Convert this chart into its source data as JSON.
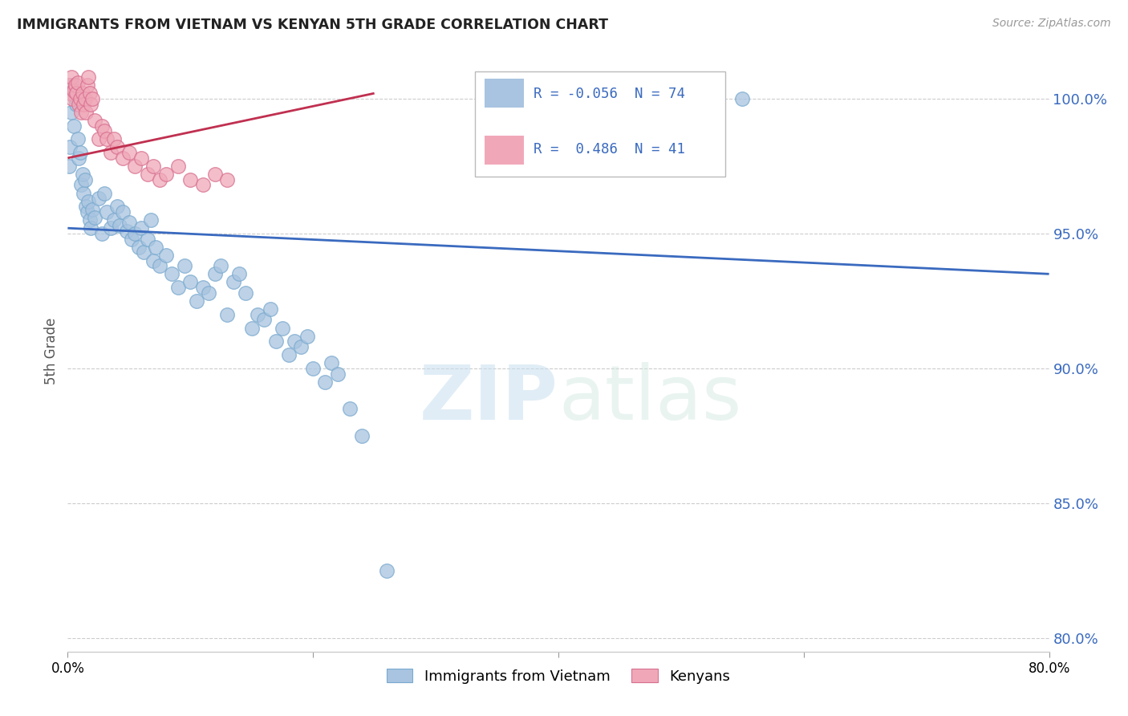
{
  "title": "IMMIGRANTS FROM VIETNAM VS KENYAN 5TH GRADE CORRELATION CHART",
  "source": "Source: ZipAtlas.com",
  "ylabel": "5th Grade",
  "yticks": [
    80.0,
    85.0,
    90.0,
    95.0,
    100.0
  ],
  "xlim": [
    0.0,
    0.8
  ],
  "ylim": [
    79.5,
    101.8
  ],
  "legend_blue_R": "-0.056",
  "legend_blue_N": "74",
  "legend_pink_R": "0.486",
  "legend_pink_N": "41",
  "blue_color": "#a8c4e0",
  "blue_edge_color": "#7aaacf",
  "pink_color": "#f0a8b8",
  "pink_edge_color": "#d87090",
  "blue_line_color": "#3a6abf",
  "pink_line_color": "#c03050",
  "legend_text_color": "#3a6abf",
  "watermark_color": "#daeaf8",
  "blue_scatter": [
    [
      0.001,
      97.5
    ],
    [
      0.002,
      98.2
    ],
    [
      0.003,
      99.5
    ],
    [
      0.004,
      100.5
    ],
    [
      0.005,
      99.0
    ],
    [
      0.006,
      100.0
    ],
    [
      0.007,
      99.8
    ],
    [
      0.008,
      98.5
    ],
    [
      0.009,
      97.8
    ],
    [
      0.01,
      98.0
    ],
    [
      0.011,
      96.8
    ],
    [
      0.012,
      97.2
    ],
    [
      0.013,
      96.5
    ],
    [
      0.014,
      97.0
    ],
    [
      0.015,
      96.0
    ],
    [
      0.016,
      95.8
    ],
    [
      0.017,
      96.2
    ],
    [
      0.018,
      95.5
    ],
    [
      0.019,
      95.2
    ],
    [
      0.02,
      95.9
    ],
    [
      0.022,
      95.6
    ],
    [
      0.025,
      96.3
    ],
    [
      0.028,
      95.0
    ],
    [
      0.03,
      96.5
    ],
    [
      0.032,
      95.8
    ],
    [
      0.035,
      95.2
    ],
    [
      0.038,
      95.5
    ],
    [
      0.04,
      96.0
    ],
    [
      0.042,
      95.3
    ],
    [
      0.045,
      95.8
    ],
    [
      0.048,
      95.1
    ],
    [
      0.05,
      95.4
    ],
    [
      0.052,
      94.8
    ],
    [
      0.055,
      95.0
    ],
    [
      0.058,
      94.5
    ],
    [
      0.06,
      95.2
    ],
    [
      0.062,
      94.3
    ],
    [
      0.065,
      94.8
    ],
    [
      0.068,
      95.5
    ],
    [
      0.07,
      94.0
    ],
    [
      0.072,
      94.5
    ],
    [
      0.075,
      93.8
    ],
    [
      0.08,
      94.2
    ],
    [
      0.085,
      93.5
    ],
    [
      0.09,
      93.0
    ],
    [
      0.095,
      93.8
    ],
    [
      0.1,
      93.2
    ],
    [
      0.105,
      92.5
    ],
    [
      0.11,
      93.0
    ],
    [
      0.115,
      92.8
    ],
    [
      0.12,
      93.5
    ],
    [
      0.125,
      93.8
    ],
    [
      0.13,
      92.0
    ],
    [
      0.135,
      93.2
    ],
    [
      0.14,
      93.5
    ],
    [
      0.145,
      92.8
    ],
    [
      0.15,
      91.5
    ],
    [
      0.155,
      92.0
    ],
    [
      0.16,
      91.8
    ],
    [
      0.165,
      92.2
    ],
    [
      0.17,
      91.0
    ],
    [
      0.175,
      91.5
    ],
    [
      0.18,
      90.5
    ],
    [
      0.185,
      91.0
    ],
    [
      0.19,
      90.8
    ],
    [
      0.195,
      91.2
    ],
    [
      0.2,
      90.0
    ],
    [
      0.21,
      89.5
    ],
    [
      0.215,
      90.2
    ],
    [
      0.22,
      89.8
    ],
    [
      0.23,
      88.5
    ],
    [
      0.24,
      87.5
    ],
    [
      0.26,
      82.5
    ],
    [
      0.55,
      100.0
    ]
  ],
  "pink_scatter": [
    [
      0.001,
      100.5
    ],
    [
      0.002,
      100.2
    ],
    [
      0.003,
      100.8
    ],
    [
      0.004,
      100.0
    ],
    [
      0.005,
      100.3
    ],
    [
      0.006,
      100.5
    ],
    [
      0.007,
      100.2
    ],
    [
      0.008,
      100.6
    ],
    [
      0.009,
      99.8
    ],
    [
      0.01,
      100.0
    ],
    [
      0.011,
      99.5
    ],
    [
      0.012,
      100.2
    ],
    [
      0.013,
      99.8
    ],
    [
      0.014,
      100.0
    ],
    [
      0.015,
      99.5
    ],
    [
      0.016,
      100.5
    ],
    [
      0.017,
      100.8
    ],
    [
      0.018,
      100.2
    ],
    [
      0.019,
      99.8
    ],
    [
      0.02,
      100.0
    ],
    [
      0.022,
      99.2
    ],
    [
      0.025,
      98.5
    ],
    [
      0.028,
      99.0
    ],
    [
      0.03,
      98.8
    ],
    [
      0.032,
      98.5
    ],
    [
      0.035,
      98.0
    ],
    [
      0.038,
      98.5
    ],
    [
      0.04,
      98.2
    ],
    [
      0.045,
      97.8
    ],
    [
      0.05,
      98.0
    ],
    [
      0.055,
      97.5
    ],
    [
      0.06,
      97.8
    ],
    [
      0.065,
      97.2
    ],
    [
      0.07,
      97.5
    ],
    [
      0.075,
      97.0
    ],
    [
      0.08,
      97.2
    ],
    [
      0.09,
      97.5
    ],
    [
      0.1,
      97.0
    ],
    [
      0.11,
      96.8
    ],
    [
      0.12,
      97.2
    ],
    [
      0.13,
      97.0
    ]
  ],
  "blue_trend_x": [
    0.0,
    0.8
  ],
  "blue_trend_y": [
    95.2,
    93.5
  ],
  "pink_trend_x": [
    0.0,
    0.25
  ],
  "pink_trend_y": [
    97.8,
    100.2
  ]
}
